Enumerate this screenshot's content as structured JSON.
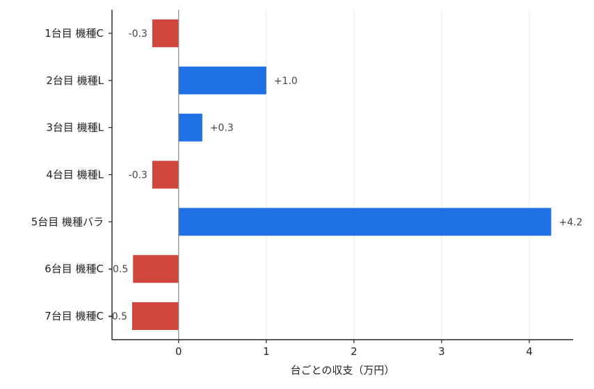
{
  "chart_data": {
    "type": "bar",
    "orientation": "horizontal",
    "title": "",
    "xlabel": "台ごとの収支（万円）",
    "ylabel": "",
    "categories": [
      "1台目 機種C",
      "2台目 機種L",
      "3台目 機種L",
      "4台目 機種L",
      "5台目 機種バラ",
      "6台目 機種C",
      "7台目 機種C"
    ],
    "values": [
      -0.3,
      1.0,
      0.27,
      -0.3,
      4.25,
      -0.52,
      -0.53
    ],
    "value_labels": [
      "-0.3",
      "+1.0",
      "+0.3",
      "-0.3",
      "+4.2",
      "-0.5",
      "-0.5"
    ],
    "xlim": [
      -0.76,
      4.5
    ],
    "xticks": [
      0,
      1,
      2,
      3,
      4
    ],
    "xtick_labels": [
      "0",
      "1",
      "2",
      "3",
      "4"
    ],
    "grid": "x",
    "legend": "none",
    "colors": {
      "positive": "#1f6fe5",
      "negative": "#d0463c",
      "zero_line": "#888888",
      "grid": "#e8e8e8"
    }
  }
}
